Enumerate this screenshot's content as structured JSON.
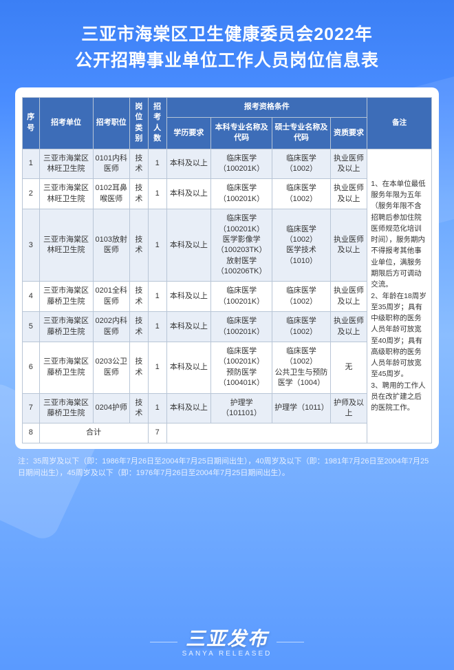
{
  "title": "三亚市海棠区卫生健康委员会2022年\n公开招聘事业单位工作人员岗位信息表",
  "headers": {
    "seq": "序号",
    "unit": "招考单位",
    "position": "招考职位",
    "category": "岗位类别",
    "count": "招考人数",
    "qual_group": "报考资格条件",
    "edu": "学历要求",
    "bachelor": "本科专业名称及代码",
    "master": "硕士专业名称及代码",
    "cert": "资质要求",
    "note": "备注"
  },
  "rows": [
    {
      "seq": "1",
      "unit": "三亚市海棠区林旺卫生院",
      "pos": "0101内科医师",
      "cat": "技术",
      "num": "1",
      "edu": "本科及以上",
      "ben": "临床医学（100201K）",
      "shuo": "临床医学（1002）",
      "cert": "执业医师及以上"
    },
    {
      "seq": "2",
      "unit": "三亚市海棠区林旺卫生院",
      "pos": "0102耳鼻喉医师",
      "cat": "技术",
      "num": "1",
      "edu": "本科及以上",
      "ben": "临床医学（100201K）",
      "shuo": "临床医学（1002）",
      "cert": "执业医师及以上"
    },
    {
      "seq": "3",
      "unit": "三亚市海棠区林旺卫生院",
      "pos": "0103放射医师",
      "cat": "技术",
      "num": "1",
      "edu": "本科及以上",
      "ben": "临床医学（100201K）\n医学影像学（100203TK）\n放射医学（100206TK）",
      "shuo": "临床医学（1002）\n医学技术（1010）",
      "cert": "执业医师及以上"
    },
    {
      "seq": "4",
      "unit": "三亚市海棠区藤桥卫生院",
      "pos": "0201全科医师",
      "cat": "技术",
      "num": "1",
      "edu": "本科及以上",
      "ben": "临床医学（100201K）",
      "shuo": "临床医学（1002）",
      "cert": "执业医师及以上"
    },
    {
      "seq": "5",
      "unit": "三亚市海棠区藤桥卫生院",
      "pos": "0202内科医师",
      "cat": "技术",
      "num": "1",
      "edu": "本科及以上",
      "ben": "临床医学（100201K）",
      "shuo": "临床医学（1002）",
      "cert": "执业医师及以上"
    },
    {
      "seq": "6",
      "unit": "三亚市海棠区藤桥卫生院",
      "pos": "0203公卫医师",
      "cat": "技术",
      "num": "1",
      "edu": "本科及以上",
      "ben": "临床医学（100201K）\n预防医学（100401K）",
      "shuo": "临床医学（1002）\n公共卫生与预防医学（1004）",
      "cert": "无"
    },
    {
      "seq": "7",
      "unit": "三亚市海棠区藤桥卫生院",
      "pos": "0204护师",
      "cat": "技术",
      "num": "1",
      "edu": "本科及以上",
      "ben": "护理学（101101）",
      "shuo": "护理学（1011）",
      "cert": "护师及以上"
    }
  ],
  "total_row": {
    "seq": "8",
    "label": "合计",
    "num": "7"
  },
  "note_text": "1、在本单位最低服务年限为五年（服务年限不含招聘后参加住院医师规范化培训时间），服务期内不得报考其他事业单位，满服务期限后方可调动交流。\n2、年龄在18周岁至35周岁；具有中级职称的医务人员年龄可放宽至40周岁；具有高级职称的医务人员年龄可放宽至45周岁。\n3、聘用的工作人员在改扩建之后的医院工作。",
  "footnote": "注：35周岁及以下（即：1986年7月26日至2004年7月25日期间出生），40周岁及以下（即：1981年7月26日至2004年7月25日期间出生），45周岁及以下（即：1976年7月26日至2004年7月25日期间出生）。",
  "brand": {
    "main": "三亚发布",
    "sub": "SANYA RELEASED"
  },
  "colors": {
    "header_bg": "#3d6db8",
    "row_odd": "#e8eef7",
    "row_even": "#ffffff",
    "border": "#b8c5d6",
    "bg_top": "#3b7ff5",
    "bg_bottom": "#5a9aff",
    "text": "#333333",
    "title_color": "#ffffff"
  }
}
